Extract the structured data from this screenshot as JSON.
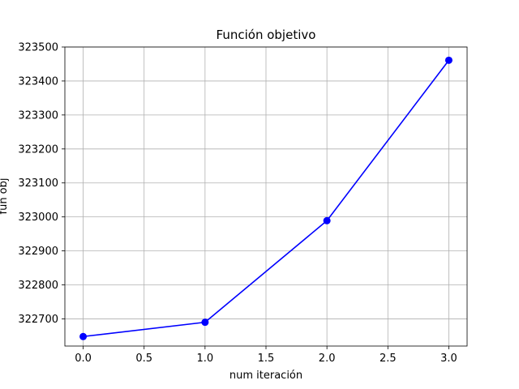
{
  "chart_data": {
    "type": "line",
    "title": "Función objetivo",
    "xlabel": "num iteración",
    "ylabel": "fun obj",
    "xlim": [
      -0.15,
      3.15
    ],
    "ylim": [
      322620,
      323500
    ],
    "xticks": [
      0.0,
      0.5,
      1.0,
      1.5,
      2.0,
      2.5,
      3.0
    ],
    "xtick_labels": [
      "0.0",
      "0.5",
      "1.0",
      "1.5",
      "2.0",
      "2.5",
      "3.0"
    ],
    "yticks": [
      322700,
      322800,
      322900,
      323000,
      323100,
      323200,
      323300,
      323400,
      323500
    ],
    "ytick_labels": [
      "322700",
      "322800",
      "322900",
      "323000",
      "323100",
      "323200",
      "323300",
      "323400",
      "323500"
    ],
    "grid": true,
    "series": [
      {
        "color": "#0000ff",
        "marker": "circle",
        "x": [
          0,
          1,
          2,
          3
        ],
        "y": [
          322648,
          322690,
          322989,
          323461
        ]
      }
    ]
  }
}
